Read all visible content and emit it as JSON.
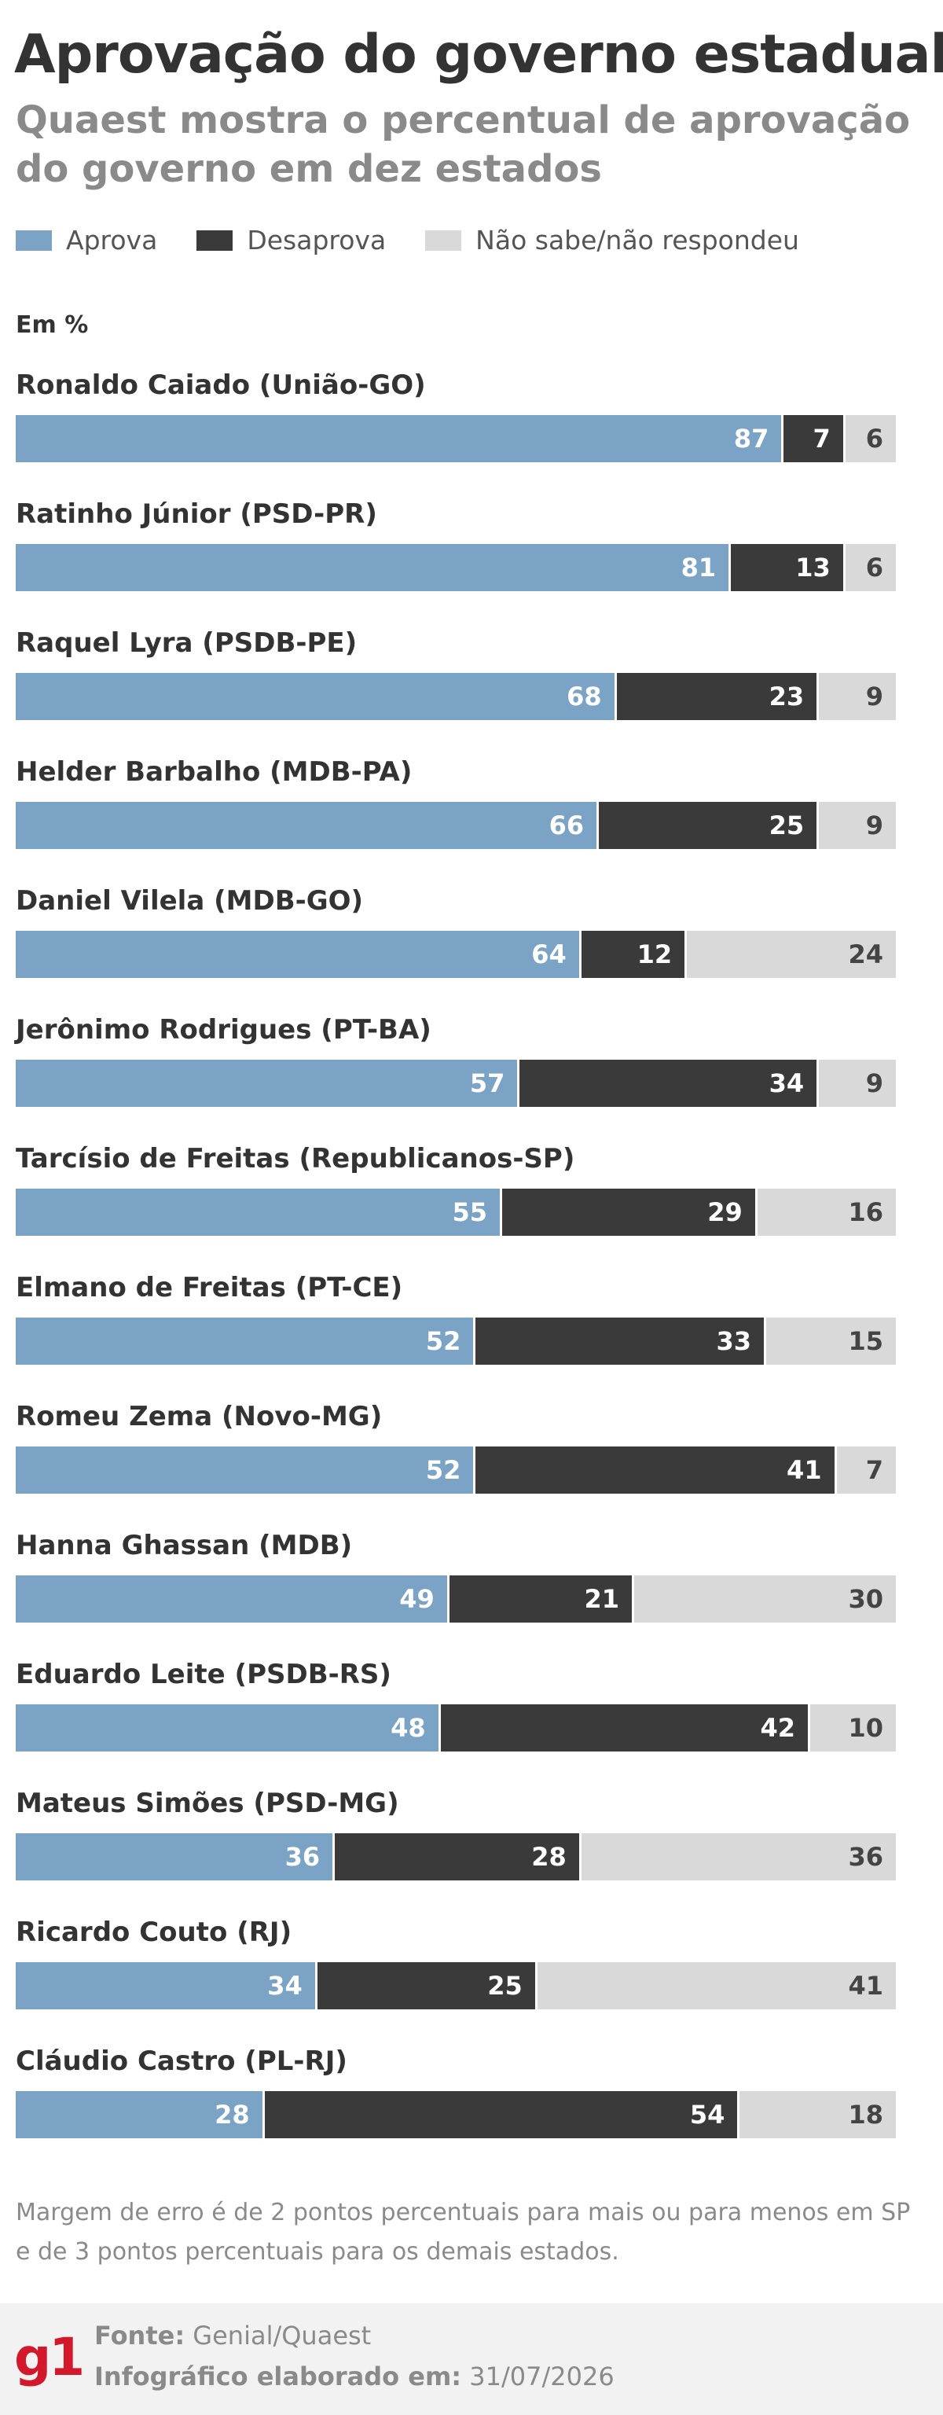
{
  "header": {
    "title": "Aprovação do governo estadual",
    "subtitle": "Quaest mostra o percentual de aprovação do governo em dez estados"
  },
  "legend": [
    {
      "label": "Aprova",
      "color": "#7ba3c5"
    },
    {
      "label": "Desaprova",
      "color": "#3a3a3a"
    },
    {
      "label": "Não sabe/não respondeu",
      "color": "#d9d9d9"
    }
  ],
  "unit_label": "Em %",
  "chart_data": {
    "type": "bar",
    "orientation": "horizontal",
    "stacked": true,
    "xlim": [
      0,
      100
    ],
    "title": "Aprovação do governo estadual",
    "subtitle": "Quaest mostra o percentual de aprovação do governo em dez estados",
    "unit": "Em %",
    "grid": false,
    "legend_position": "top-left",
    "categories": [
      "Ronaldo Caiado (União-GO)",
      "Ratinho Júnior (PSD-PR)",
      "Raquel Lyra (PSDB-PE)",
      "Helder Barbalho (MDB-PA)",
      "Daniel Vilela (MDB-GO)",
      "Jerônimo Rodrigues (PT-BA)",
      "Tarcísio de Freitas (Republicanos-SP)",
      "Elmano de Freitas (PT-CE)",
      "Romeu Zema (Novo-MG)",
      "Hanna Ghassan (MDB)",
      "Eduardo Leite (PSDB-RS)",
      "Mateus Simões (PSD-MG)",
      "Ricardo Couto (RJ)",
      "Cláudio Castro (PL-RJ)"
    ],
    "series": [
      {
        "name": "Aprova",
        "color": "#7ba3c5",
        "values": [
          87,
          81,
          68,
          66,
          64,
          57,
          55,
          52,
          52,
          49,
          48,
          36,
          34,
          28
        ]
      },
      {
        "name": "Desaprova",
        "color": "#3a3a3a",
        "values": [
          7,
          13,
          23,
          25,
          12,
          34,
          29,
          33,
          41,
          21,
          42,
          28,
          25,
          54
        ]
      },
      {
        "name": "Não sabe/não respondeu",
        "color": "#d9d9d9",
        "values": [
          6,
          6,
          9,
          9,
          24,
          9,
          16,
          15,
          7,
          30,
          10,
          36,
          41,
          18
        ]
      }
    ]
  },
  "note": "Margem de erro é de 2 pontos percentuais para mais ou para menos em SP e de 3 pontos percentuais para os demais estados.",
  "footer": {
    "logo": "g1",
    "source_label": "Fonte:",
    "source_value": "Genial/Quaest",
    "date_label": "Infográfico elaborado em:",
    "date_value": "31/07/2026"
  }
}
